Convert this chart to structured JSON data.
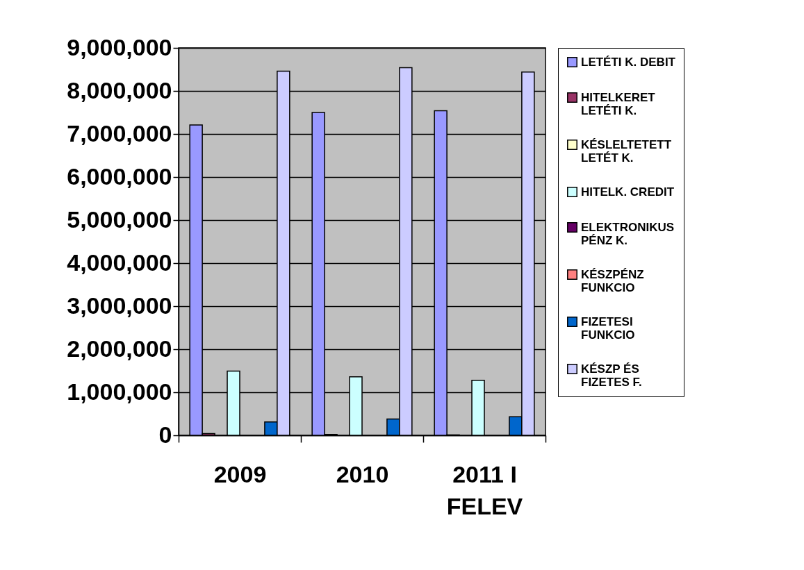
{
  "chart_data": {
    "type": "bar",
    "categories": [
      "2009",
      "2010",
      "2011 I FELEV"
    ],
    "series": [
      {
        "name": "LETÉTI K. DEBIT",
        "color": "#9999ff",
        "values": [
          7210000,
          7500000,
          7540000
        ]
      },
      {
        "name": "HITELKERET LETÉTI K.",
        "color": "#993366",
        "values": [
          40000,
          20000,
          10000
        ]
      },
      {
        "name": "KÉSLELTETETT LETÉT K.",
        "color": "#ffffcc",
        "values": [
          0,
          0,
          0
        ]
      },
      {
        "name": "HITELK. CREDIT",
        "color": "#ccffff",
        "values": [
          1490000,
          1360000,
          1280000
        ]
      },
      {
        "name": "ELEKTRONIKUS PÉNZ K.",
        "color": "#660066",
        "values": [
          0,
          0,
          0
        ]
      },
      {
        "name": "KÉSZPÉNZ FUNKCIO",
        "color": "#ff8080",
        "values": [
          0,
          0,
          0
        ]
      },
      {
        "name": "FIZETESI FUNKCIO",
        "color": "#0066cc",
        "values": [
          310000,
          380000,
          430000
        ]
      },
      {
        "name": "KÉSZP ÉS FIZETES F.",
        "color": "#ccccff",
        "values": [
          8460000,
          8540000,
          8440000
        ]
      }
    ],
    "ylim": [
      0,
      9000000
    ],
    "yticks": [
      {
        "value": 0,
        "label": "0"
      },
      {
        "value": 1000000,
        "label": "1,000,000"
      },
      {
        "value": 2000000,
        "label": "2,000,000"
      },
      {
        "value": 3000000,
        "label": "3,000,000"
      },
      {
        "value": 4000000,
        "label": "4,000,000"
      },
      {
        "value": 5000000,
        "label": "5,000,000"
      },
      {
        "value": 6000000,
        "label": "6,000,000"
      },
      {
        "value": 7000000,
        "label": "7,000,000"
      },
      {
        "value": 8000000,
        "label": "8,000,000"
      },
      {
        "value": 9000000,
        "label": "9,000,000"
      }
    ],
    "grid": "y",
    "legend": "right"
  }
}
